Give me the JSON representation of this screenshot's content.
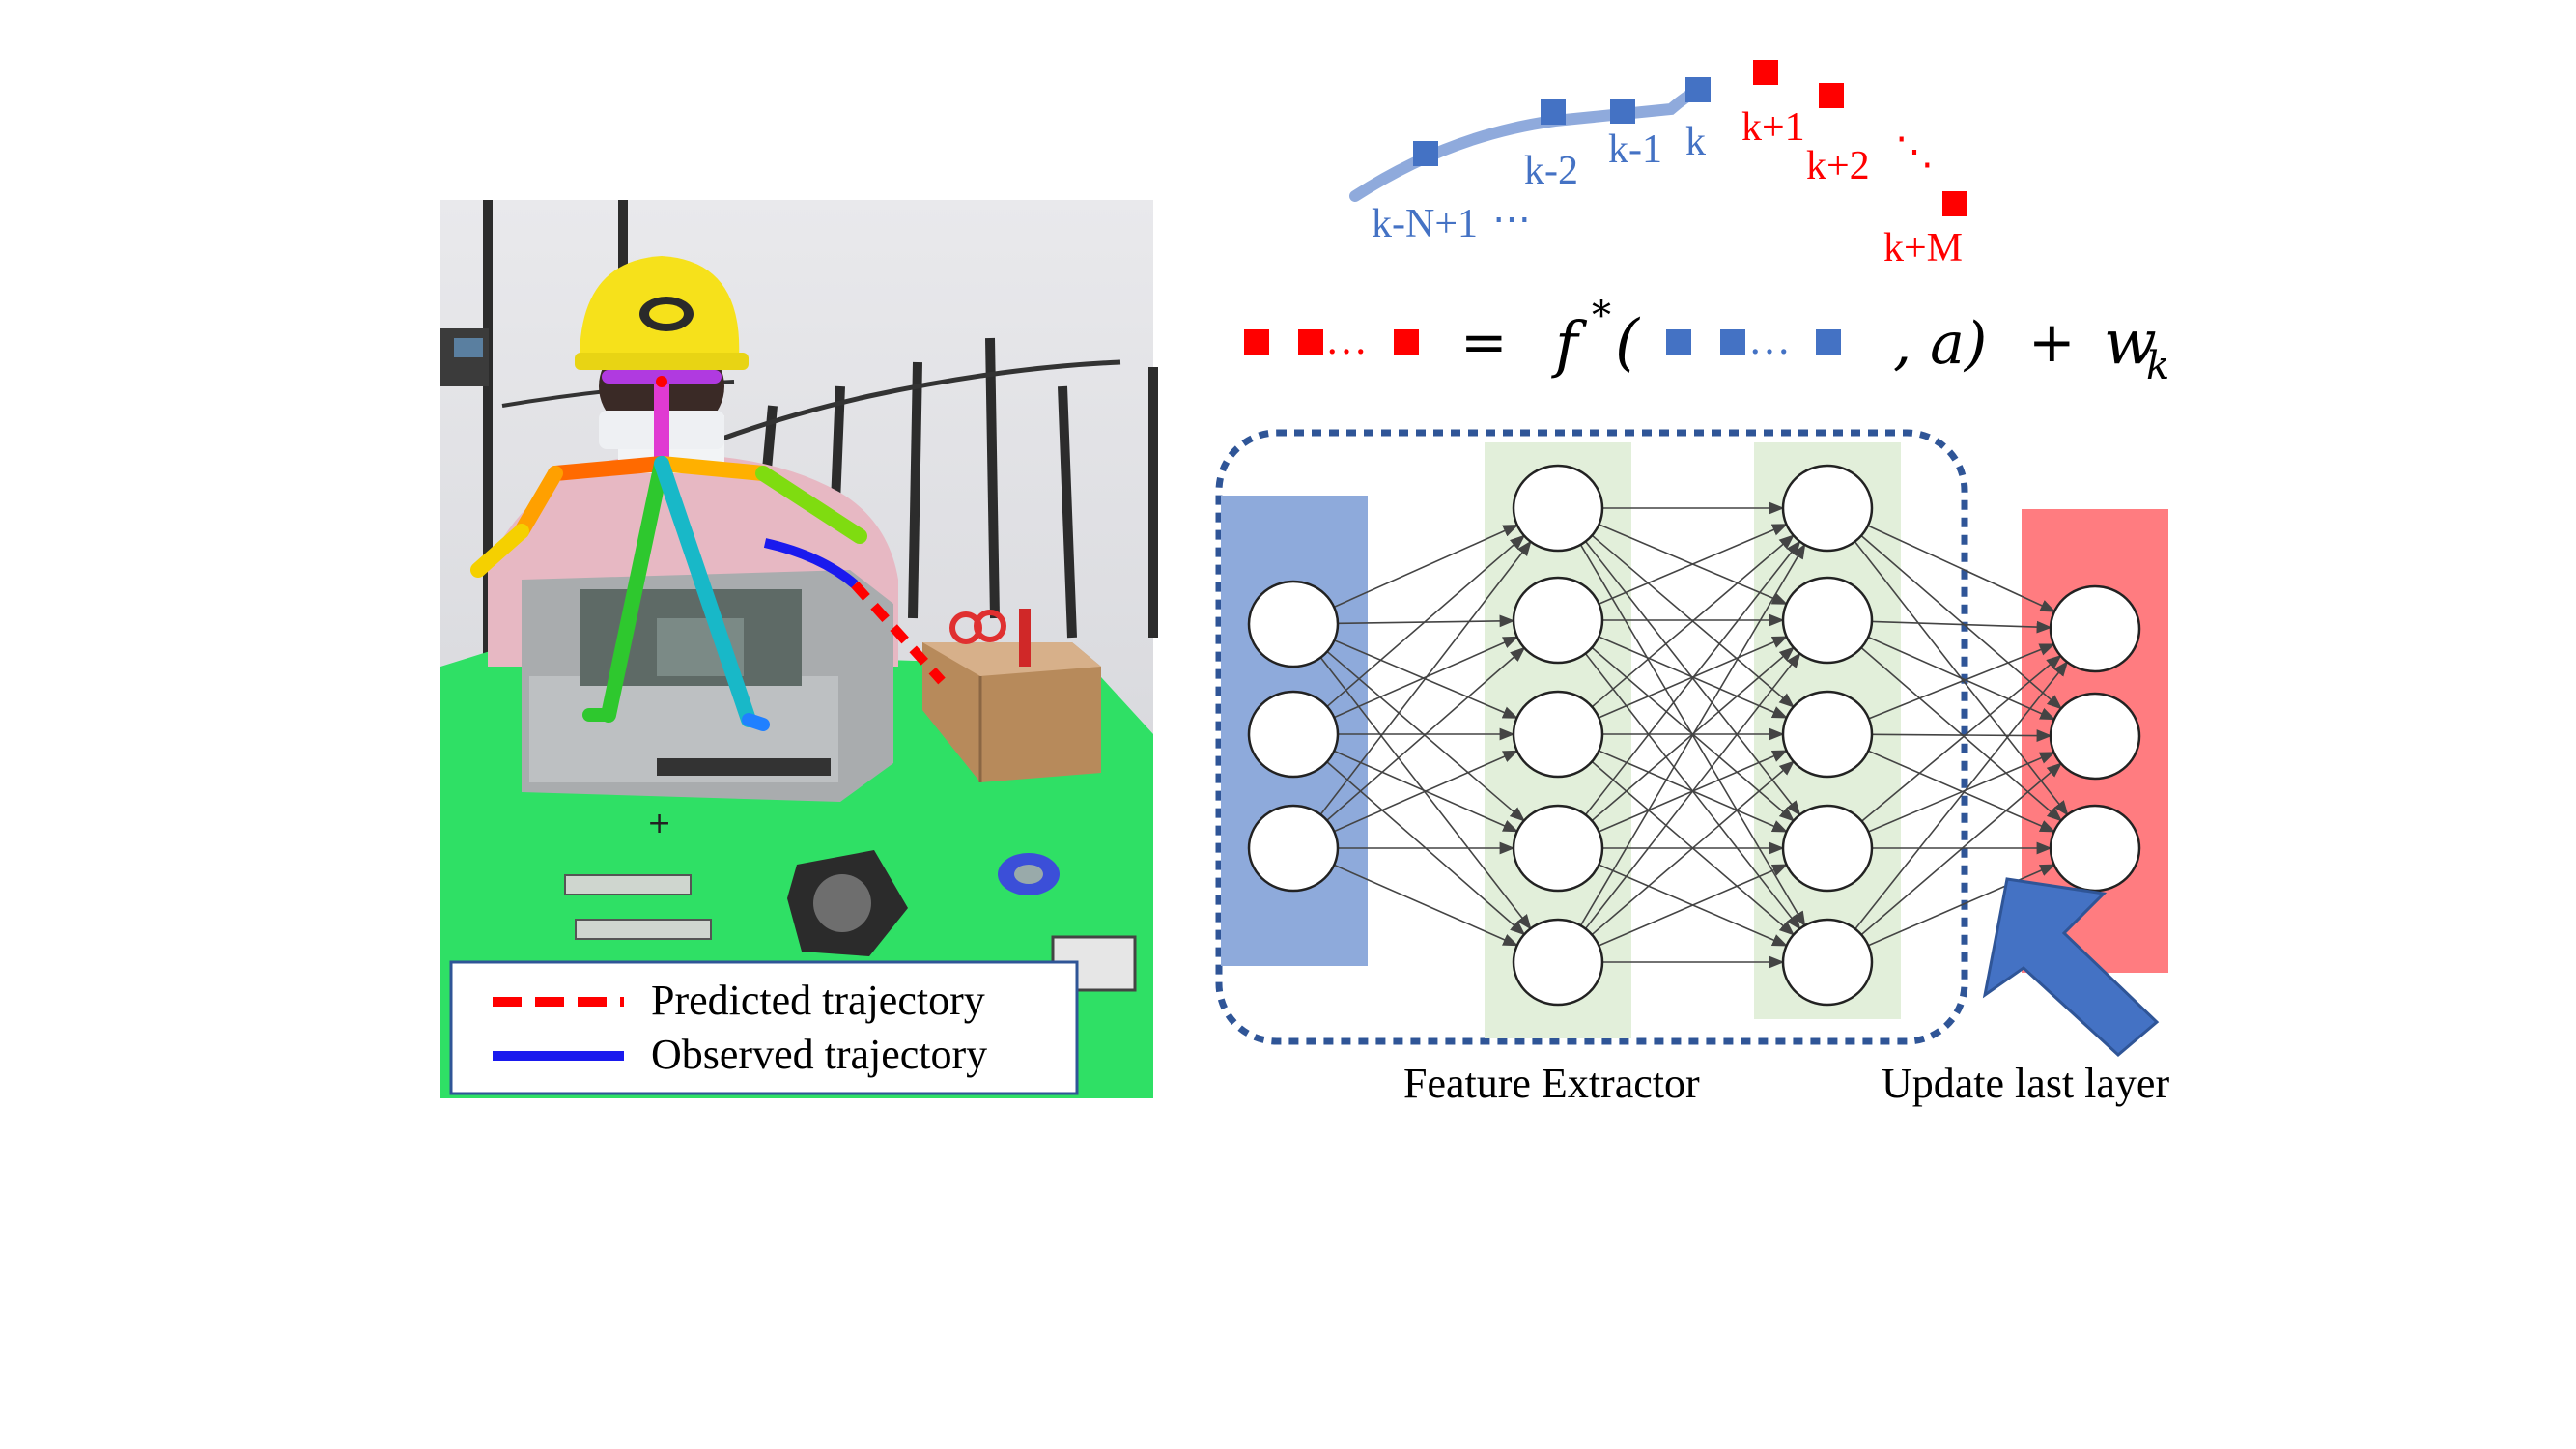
{
  "legend": {
    "predicted_label": "Predicted trajectory",
    "observed_label": "Observed trajectory",
    "predicted_color": "#ff0000",
    "observed_color": "#1a1aee"
  },
  "trajectory_labels": {
    "observed": [
      "k-N+1",
      "k-2",
      "k-1",
      "k"
    ],
    "observed_ellipsis": "⋯",
    "predicted": [
      "k+1",
      "k+2",
      "k+M"
    ],
    "predicted_ellipsis": "⋱"
  },
  "equation": {
    "equals": "=",
    "func": "f",
    "superscript": "*",
    "open_paren": "(",
    "action": ", a)",
    "plus": "+",
    "noise": "w",
    "noise_sub": "k",
    "ellipsis": "…"
  },
  "captions": {
    "feature_extractor": "Feature Extractor",
    "update_last_layer": "Update last layer"
  },
  "network": {
    "layers": [
      3,
      5,
      5,
      3
    ]
  },
  "icons": {
    "photo": "robot-assembly-photo-icon",
    "arrow": "update-arrow-icon"
  },
  "colors": {
    "observed_blue": "#4472c4",
    "predicted_red": "#ff0000",
    "input_layer": "#8eaadb",
    "hidden_layer": "#e2efda",
    "output_layer": "#ff7c80",
    "dashed_border": "#2f5597",
    "arrow_fill": "#4472c4"
  }
}
